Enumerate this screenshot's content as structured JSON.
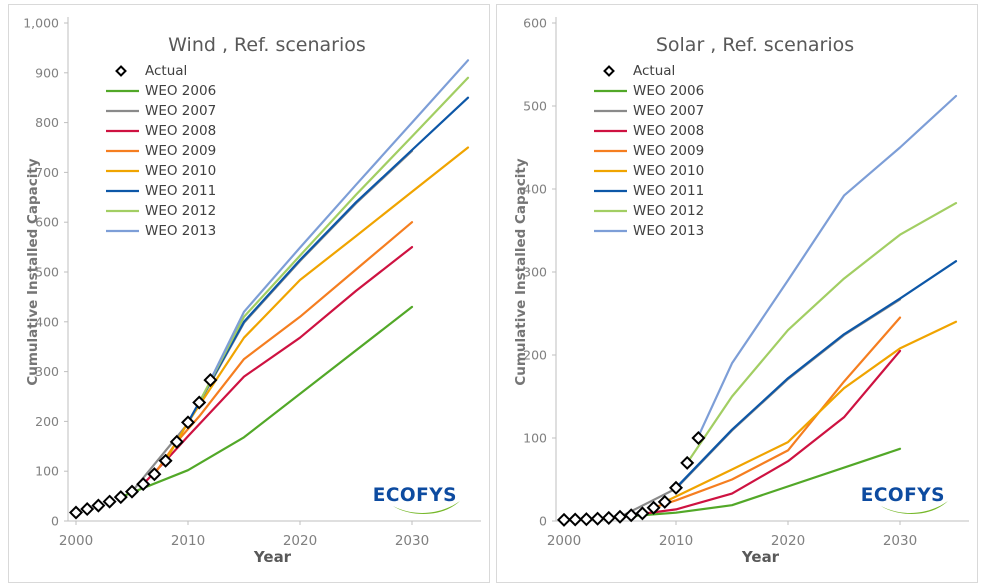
{
  "window": {
    "background": "#FFFFFF",
    "panel_border_color": "#D9D9D9"
  },
  "branding": {
    "logo_text": "ECOFYS",
    "logo_color": "#0D4BA0",
    "logo_swoosh_color": "#76B82A"
  },
  "styles": {
    "axis_color": "#BFBFBF",
    "tick_text_color": "#808080",
    "title_color": "#595959",
    "legend_text_color": "#404040",
    "axis_title_color": "#757575",
    "actual_marker_color": "#000000"
  },
  "chart_data": [
    {
      "id": "wind",
      "type": "line",
      "title": "Wind , Ref. scenarios",
      "xlabel": "Year",
      "ylabel": "Cumulative Installed Capacity",
      "xlim": [
        2000,
        2036
      ],
      "ylim": [
        0,
        1000
      ],
      "xticks": [
        2000,
        2010,
        2020,
        2030
      ],
      "ytick_values": [
        0,
        100,
        200,
        300,
        400,
        500,
        600,
        700,
        800,
        900,
        1000
      ],
      "ytick_labels": [
        "0",
        "100",
        "200",
        "300",
        "400",
        "500",
        "600",
        "700",
        "800",
        "900",
        "1,000"
      ],
      "grid": false,
      "legend_position": "top-left-inside",
      "actual": {
        "name": "Actual",
        "marker": "open-diamond",
        "points": [
          [
            2000,
            17
          ],
          [
            2001,
            24
          ],
          [
            2002,
            31
          ],
          [
            2003,
            39
          ],
          [
            2004,
            48
          ],
          [
            2005,
            59
          ],
          [
            2006,
            74
          ],
          [
            2007,
            94
          ],
          [
            2008,
            121
          ],
          [
            2009,
            159
          ],
          [
            2010,
            198
          ],
          [
            2011,
            238
          ],
          [
            2012,
            283
          ]
        ]
      },
      "series": [
        {
          "name": "WEO 2006",
          "color": "#52A828",
          "points": [
            [
              2004,
              48
            ],
            [
              2010,
              102
            ],
            [
              2015,
              168
            ],
            [
              2030,
              430
            ]
          ]
        },
        {
          "name": "WEO 2007",
          "color": "#8A8A8A",
          "points": [
            [
              2005,
              59
            ],
            [
              2010,
              196
            ],
            [
              2015,
              398
            ],
            [
              2020,
              522
            ],
            [
              2025,
              638
            ],
            [
              2030,
              743
            ]
          ],
          "hidden_behind_bundle": true
        },
        {
          "name": "WEO 2008",
          "color": "#CE1241",
          "points": [
            [
              2006,
              74
            ],
            [
              2008,
              121
            ],
            [
              2010,
              170
            ],
            [
              2015,
              290
            ],
            [
              2020,
              368
            ],
            [
              2025,
              462
            ],
            [
              2030,
              550
            ]
          ]
        },
        {
          "name": "WEO 2009",
          "color": "#F57E20",
          "points": [
            [
              2007,
              94
            ],
            [
              2009,
              159
            ],
            [
              2011,
              210
            ],
            [
              2015,
              325
            ],
            [
              2020,
              410
            ],
            [
              2025,
              505
            ],
            [
              2030,
              600
            ]
          ]
        },
        {
          "name": "WEO 2010",
          "color": "#F0A400",
          "points": [
            [
              2008,
              121
            ],
            [
              2010,
              198
            ],
            [
              2015,
              368
            ],
            [
              2020,
              484
            ],
            [
              2025,
              572
            ],
            [
              2030,
              661
            ],
            [
              2035,
              750
            ]
          ]
        },
        {
          "name": "WEO 2011",
          "color": "#0D57A7",
          "points": [
            [
              2010,
              198
            ],
            [
              2015,
              400
            ],
            [
              2020,
              524
            ],
            [
              2025,
              640
            ],
            [
              2030,
              745
            ],
            [
              2035,
              850
            ]
          ]
        },
        {
          "name": "WEO 2012",
          "color": "#A2CE63",
          "points": [
            [
              2011,
              238
            ],
            [
              2015,
              410
            ],
            [
              2020,
              533
            ],
            [
              2025,
              655
            ],
            [
              2030,
              772
            ],
            [
              2035,
              890
            ]
          ]
        },
        {
          "name": "WEO 2013",
          "color": "#7D9ED7",
          "points": [
            [
              2012,
              283
            ],
            [
              2015,
              420
            ],
            [
              2020,
              549
            ],
            [
              2025,
              675
            ],
            [
              2030,
              800
            ],
            [
              2035,
              925
            ]
          ]
        }
      ]
    },
    {
      "id": "solar",
      "type": "line",
      "title": "Solar , Ref. scenarios",
      "xlabel": "Year",
      "ylabel": "Cumulative Installed Capacity",
      "xlim": [
        2000,
        2036
      ],
      "ylim": [
        0,
        600
      ],
      "xticks": [
        2000,
        2010,
        2020,
        2030
      ],
      "ytick_values": [
        0,
        100,
        200,
        300,
        400,
        500,
        600
      ],
      "ytick_labels": [
        "0",
        "100",
        "200",
        "300",
        "400",
        "500",
        "600"
      ],
      "grid": false,
      "legend_position": "top-left-inside",
      "actual": {
        "name": "Actual",
        "marker": "open-diamond",
        "points": [
          [
            2000,
            1.4
          ],
          [
            2001,
            1.8
          ],
          [
            2002,
            2.2
          ],
          [
            2003,
            2.8
          ],
          [
            2004,
            3.7
          ],
          [
            2005,
            5.1
          ],
          [
            2006,
            6.9
          ],
          [
            2007,
            9.2
          ],
          [
            2008,
            16
          ],
          [
            2009,
            23
          ],
          [
            2010,
            40
          ],
          [
            2011,
            70
          ],
          [
            2012,
            100
          ]
        ]
      },
      "series": [
        {
          "name": "WEO 2006",
          "color": "#52A828",
          "points": [
            [
              2004,
              4
            ],
            [
              2010,
              10
            ],
            [
              2015,
              19
            ],
            [
              2030,
              87
            ]
          ]
        },
        {
          "name": "WEO 2007",
          "color": "#8A8A8A",
          "points": [
            [
              2005,
              5
            ],
            [
              2010,
              39
            ],
            [
              2015,
              109
            ],
            [
              2020,
              171
            ],
            [
              2025,
              224
            ],
            [
              2030,
              267
            ]
          ],
          "hidden_behind_bundle": true
        },
        {
          "name": "WEO 2008",
          "color": "#CE1241",
          "points": [
            [
              2006,
              7
            ],
            [
              2010,
              14
            ],
            [
              2015,
              33
            ],
            [
              2020,
              72
            ],
            [
              2025,
              125
            ],
            [
              2030,
              205
            ]
          ]
        },
        {
          "name": "WEO 2009",
          "color": "#F57E20",
          "points": [
            [
              2008,
              16
            ],
            [
              2010,
              25
            ],
            [
              2015,
              50
            ],
            [
              2020,
              85
            ],
            [
              2025,
              168
            ],
            [
              2030,
              245
            ]
          ]
        },
        {
          "name": "WEO 2010",
          "color": "#F0A400",
          "points": [
            [
              2009,
              23
            ],
            [
              2015,
              62
            ],
            [
              2020,
              95
            ],
            [
              2025,
              160
            ],
            [
              2030,
              208
            ],
            [
              2035,
              240
            ]
          ]
        },
        {
          "name": "WEO 2011",
          "color": "#0D57A7",
          "points": [
            [
              2010,
              40
            ],
            [
              2015,
              110
            ],
            [
              2020,
              172
            ],
            [
              2025,
              225
            ],
            [
              2030,
              268
            ],
            [
              2035,
              313
            ]
          ]
        },
        {
          "name": "WEO 2012",
          "color": "#A2CE63",
          "points": [
            [
              2011,
              70
            ],
            [
              2015,
              150
            ],
            [
              2020,
              230
            ],
            [
              2025,
              292
            ],
            [
              2030,
              345
            ],
            [
              2035,
              383
            ]
          ]
        },
        {
          "name": "WEO 2013",
          "color": "#7D9ED7",
          "points": [
            [
              2012,
              102
            ],
            [
              2015,
              190
            ],
            [
              2020,
              290
            ],
            [
              2025,
              392
            ],
            [
              2030,
              450
            ],
            [
              2035,
              512
            ]
          ]
        }
      ]
    }
  ]
}
